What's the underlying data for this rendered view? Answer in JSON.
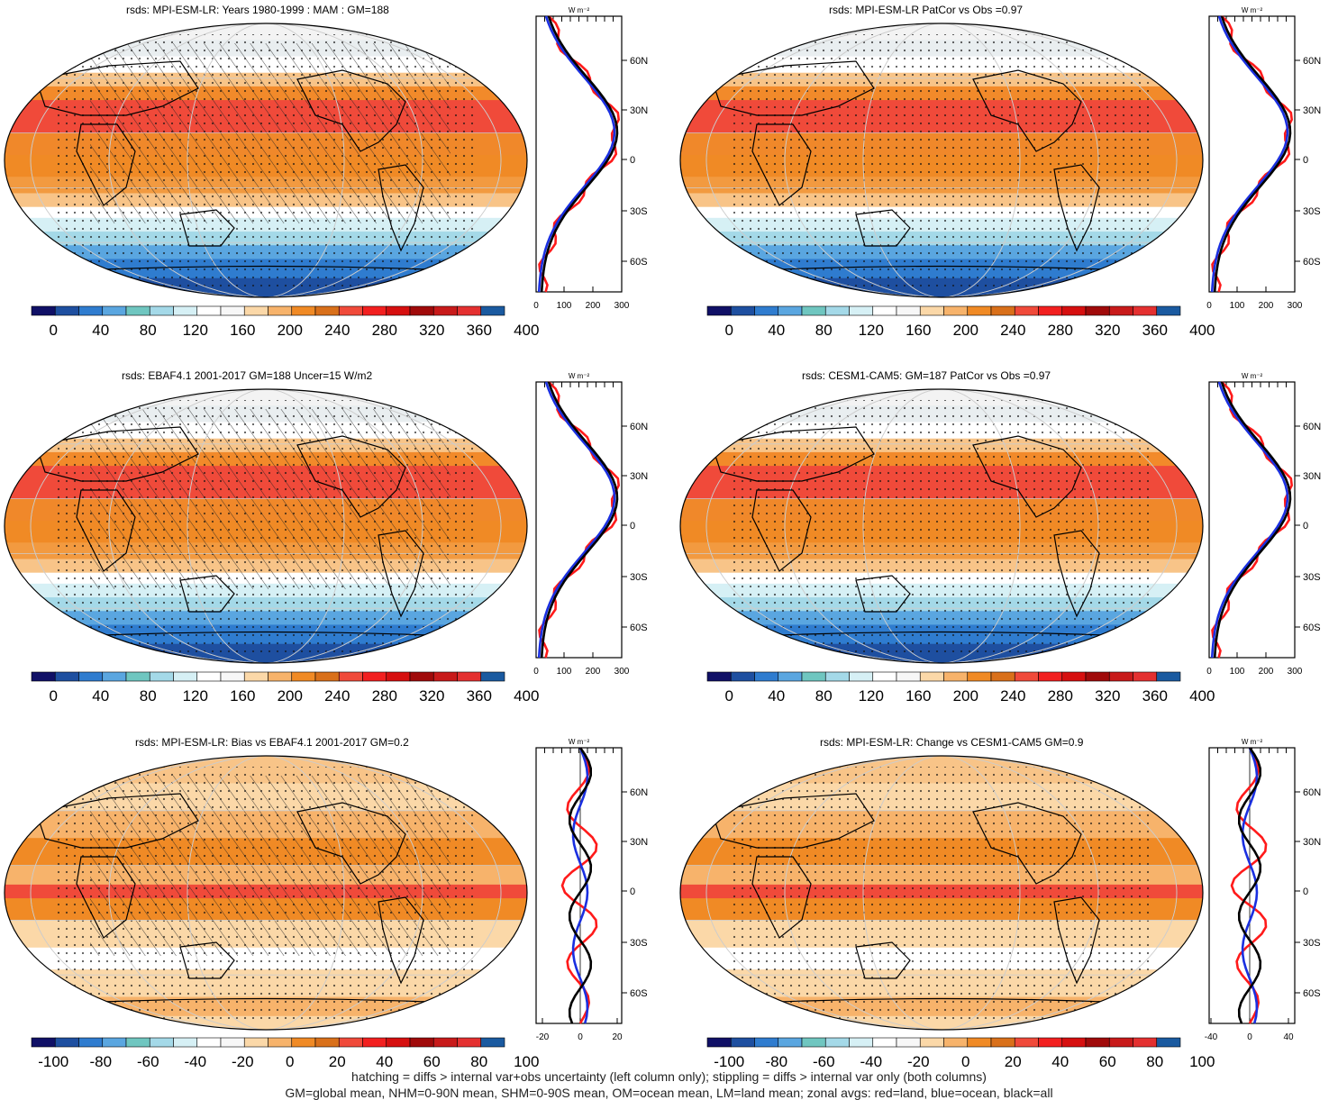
{
  "colors": {
    "abs_scale": [
      "#101066",
      "#1e4fa0",
      "#2f7ccf",
      "#5aa6e0",
      "#6fc6c0",
      "#a4d9e8",
      "#d6f0f5",
      "#ffffff",
      "#f7f7f7",
      "#fbd8a8",
      "#f7b36b",
      "#f08a25",
      "#d9701a",
      "#f04a3a",
      "#f21f1f",
      "#d60f0f",
      "#a00a0a",
      "#c81a1a",
      "#e43030",
      "#1a5aa0"
    ],
    "diff_scale": [
      "#101066",
      "#1e4fa0",
      "#2f7ccf",
      "#5aa6e0",
      "#6fc6c0",
      "#a4d9e8",
      "#d6f0f5",
      "#ffffff",
      "#f7f7f7",
      "#fbd8a8",
      "#f7b36b",
      "#f08a25",
      "#d9701a",
      "#f04a3a",
      "#f21f1f",
      "#d60f0f",
      "#a00a0a",
      "#c81a1a",
      "#e43030",
      "#1a5aa0"
    ],
    "land_line": "#ff1a1a",
    "ocean_line": "#1a2fe0",
    "all_line": "#000000"
  },
  "panels": [
    {
      "title": "rsds: MPI-ESM-LR: Years 1980-1999 : MAM : GM=188",
      "kind": "abs",
      "hatch": true
    },
    {
      "title": "rsds: MPI-ESM-LR PatCor vs Obs =0.97",
      "kind": "abs",
      "hatch": false
    },
    {
      "title": "rsds: EBAF4.1 2001-2017 GM=188 Uncer=15 W/m2",
      "kind": "abs",
      "hatch": true
    },
    {
      "title": "rsds: CESM1-CAM5: GM=187 PatCor vs Obs =0.97",
      "kind": "abs",
      "hatch": false
    },
    {
      "title": "rsds: MPI-ESM-LR: Bias vs EBAF4.1 2001-2017 GM=0.2",
      "kind": "diff",
      "hatch": true
    },
    {
      "title": "rsds: MPI-ESM-LR: Change vs CESM1-CAM5 GM=0.9",
      "kind": "diff",
      "hatch": false
    }
  ],
  "zonal": {
    "unit": "W m⁻²",
    "lat_labels": [
      "60N",
      "30N",
      "0",
      "30S",
      "60S"
    ],
    "abs_ticks": [
      "0",
      "100",
      "200",
      "300"
    ],
    "left_bias_ticks": [
      "-20",
      "0",
      "20"
    ],
    "right_change_ticks": [
      "-40",
      "0",
      "40"
    ]
  },
  "colorbars": {
    "abs_labels": [
      "0",
      "40",
      "80",
      "120",
      "160",
      "200",
      "240",
      "280",
      "320",
      "360",
      "400"
    ],
    "diff_labels": [
      "-100",
      "-80",
      "-60",
      "-40",
      "-20",
      "0",
      "20",
      "40",
      "60",
      "80",
      "100"
    ]
  },
  "footer": {
    "line1": "hatching = diffs > internal var+obs uncertainty (left column only); stippling = diffs > internal var only (both columns)",
    "line2": "GM=global mean, NHM=0-90N mean, SHM=0-90S mean, OM=ocean mean, LM=land mean; zonal avgs: red=land, blue=ocean, black=all"
  }
}
